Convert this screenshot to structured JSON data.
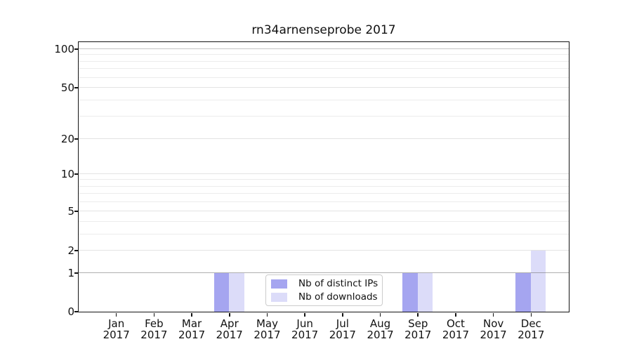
{
  "title": "rn34arnenseprobe 2017",
  "chart_data": {
    "type": "bar",
    "title": "rn34arnenseprobe 2017",
    "categories": [
      "Jan 2017",
      "Feb 2017",
      "Mar 2017",
      "Apr 2017",
      "May 2017",
      "Jun 2017",
      "Jul 2017",
      "Aug 2017",
      "Sep 2017",
      "Oct 2017",
      "Nov 2017",
      "Dec 2017"
    ],
    "x_tick_months": [
      "Jan",
      "Feb",
      "Mar",
      "Apr",
      "May",
      "Jun",
      "Jul",
      "Aug",
      "Sep",
      "Oct",
      "Nov",
      "Dec"
    ],
    "x_tick_year": "2017",
    "series": [
      {
        "name": "Nb of distinct IPs",
        "color": "#a5a5f0",
        "values": [
          0,
          0,
          0,
          1,
          0,
          0,
          0,
          0,
          1,
          0,
          0,
          1
        ]
      },
      {
        "name": "Nb of downloads",
        "color": "#dcdcf9",
        "values": [
          0,
          0,
          0,
          1,
          0,
          0,
          0,
          0,
          1,
          0,
          0,
          2
        ]
      }
    ],
    "y_axis": {
      "scale": "symlog (log1p-like, linear near 0)",
      "major_ticks": [
        0,
        1,
        2,
        5,
        10,
        20,
        50,
        100
      ],
      "minor_ticks": [
        3,
        4,
        6,
        7,
        8,
        9,
        30,
        40,
        60,
        70,
        80,
        90
      ],
      "ylim": [
        0,
        113
      ],
      "emphasized_gridlines": [
        1,
        100
      ]
    },
    "grid": {
      "horizontal": true
    },
    "legend": {
      "position": "lower center"
    }
  },
  "colors": {
    "background": "#ffffff",
    "spine": "#141414",
    "grid_major": "#e3e3e3",
    "grid_minor": "#ececec",
    "grid_emphasis_1": "rgba(110,110,110,0.55)",
    "grid_emphasis_100": "#c4c4c4",
    "text": "#111111",
    "legend_border": "#cccccc"
  }
}
